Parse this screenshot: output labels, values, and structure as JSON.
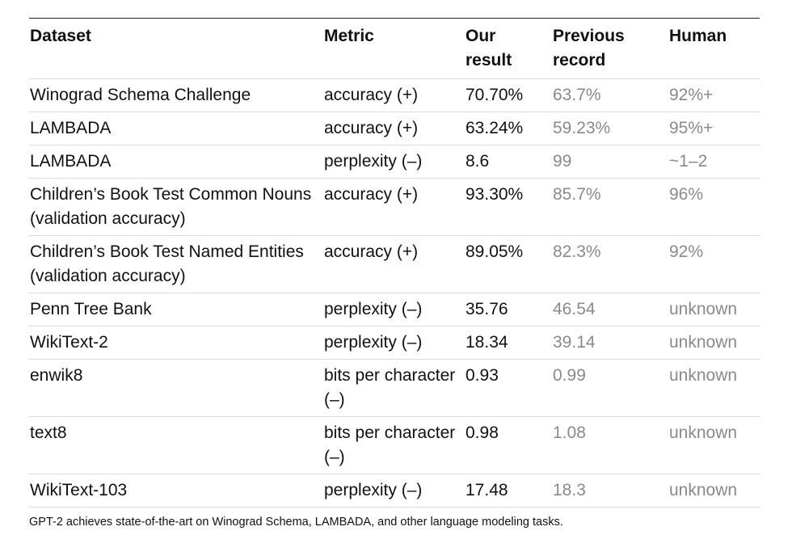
{
  "table": {
    "headers": {
      "dataset": "Dataset",
      "metric": "Metric",
      "ours": "Our result",
      "previous": "Previous record",
      "human": "Human"
    },
    "rows": [
      {
        "dataset": "Winograd Schema Challenge",
        "metric": "accuracy (+)",
        "ours": "70.70%",
        "previous": "63.7%",
        "human": "92%+"
      },
      {
        "dataset": "LAMBADA",
        "metric": "accuracy (+)",
        "ours": "63.24%",
        "previous": "59.23%",
        "human": "95%+"
      },
      {
        "dataset": "LAMBADA",
        "metric": "perplexity (–)",
        "ours": "8.6",
        "previous": "99",
        "human": "~1–2"
      },
      {
        "dataset": "Children’s Book Test Common Nouns (validation accuracy)",
        "metric": "accuracy (+)",
        "ours": "93.30%",
        "previous": "85.7%",
        "human": "96%"
      },
      {
        "dataset": "Children’s Book Test Named Entities (validation accuracy)",
        "metric": "accuracy (+)",
        "ours": "89.05%",
        "previous": "82.3%",
        "human": "92%"
      },
      {
        "dataset": "Penn Tree Bank",
        "metric": "perplexity (–)",
        "ours": "35.76",
        "previous": "46.54",
        "human": "unknown"
      },
      {
        "dataset": "WikiText-2",
        "metric": "perplexity (–)",
        "ours": "18.34",
        "previous": "39.14",
        "human": "unknown"
      },
      {
        "dataset": "enwik8",
        "metric": "bits per character (–)",
        "ours": "0.93",
        "previous": "0.99",
        "human": "unknown"
      },
      {
        "dataset": "text8",
        "metric": "bits per character (–)",
        "ours": "0.98",
        "previous": "1.08",
        "human": "unknown"
      },
      {
        "dataset": "WikiText-103",
        "metric": "perplexity (–)",
        "ours": "17.48",
        "previous": "18.3",
        "human": "unknown"
      }
    ]
  },
  "caption": "GPT-2 achieves state-of-the-art on Winograd Schema, LAMBADA, and other language modeling tasks."
}
